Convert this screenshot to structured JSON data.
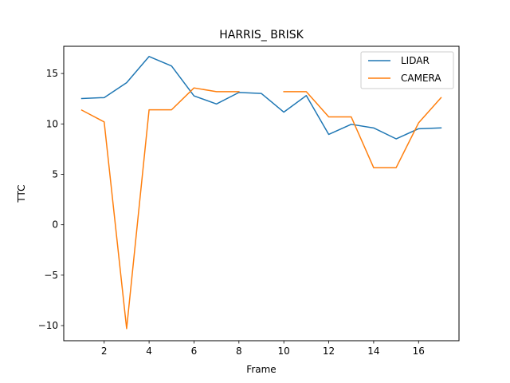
{
  "chart_data": {
    "type": "line",
    "title": "HARRIS_ BRISK",
    "xlabel": "Frame",
    "ylabel": "TTC",
    "xlim": [
      0.2,
      17.8
    ],
    "ylim": [
      -11.5,
      17.7
    ],
    "xticks": [
      2,
      4,
      6,
      8,
      10,
      12,
      14,
      16
    ],
    "yticks": [
      -10,
      -5,
      0,
      5,
      10,
      15
    ],
    "ytick_labels": [
      "−10",
      "−5",
      "0",
      "5",
      "10",
      "15"
    ],
    "grid": false,
    "legend_position": "top-right",
    "x": [
      1,
      2,
      3,
      4,
      5,
      6,
      7,
      8,
      9,
      10,
      11,
      12,
      13,
      14,
      15,
      16,
      17
    ],
    "series": [
      {
        "name": "LIDAR",
        "color": "#1f77b4",
        "values": [
          12.52,
          12.61,
          14.09,
          16.69,
          15.75,
          12.78,
          11.98,
          13.12,
          13.02,
          11.17,
          12.81,
          8.96,
          9.96,
          9.6,
          8.52,
          9.52,
          9.61
        ]
      },
      {
        "name": "CAMERA",
        "color": "#ff7f0e",
        "values": [
          11.37,
          10.2,
          -10.3,
          11.4,
          11.4,
          13.57,
          13.2,
          13.2,
          null,
          13.2,
          13.2,
          10.7,
          10.7,
          5.66,
          5.66,
          10.1,
          12.6
        ]
      }
    ]
  }
}
